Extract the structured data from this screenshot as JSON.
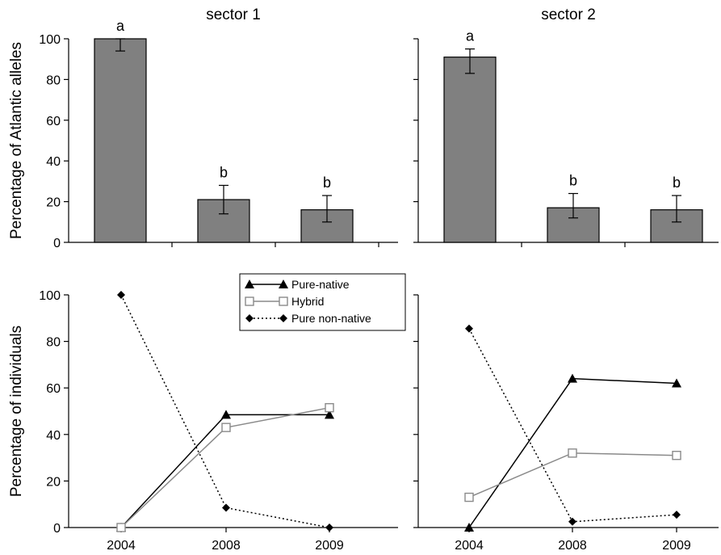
{
  "chart_data": [
    {
      "type": "bar",
      "panel": "top-left",
      "title": "sector 1",
      "ylabel": "Percentage of Atlantic alleles",
      "xlabel": "",
      "ylim": [
        0,
        100
      ],
      "yticks": [
        0,
        20,
        40,
        60,
        80,
        100
      ],
      "categories": [
        "2004",
        "2008",
        "2009"
      ],
      "values": [
        100,
        21,
        16
      ],
      "error": [
        [
          94,
          100
        ],
        [
          14,
          28
        ],
        [
          10,
          23
        ]
      ],
      "letters": [
        "a",
        "b",
        "b"
      ],
      "bar_color": "#808080",
      "show_x_tick_labels": false
    },
    {
      "type": "bar",
      "panel": "top-right",
      "title": "sector 2",
      "ylabel": "",
      "xlabel": "",
      "ylim": [
        0,
        100
      ],
      "yticks": [
        0,
        20,
        40,
        60,
        80,
        100
      ],
      "categories": [
        "2004",
        "2008",
        "2009"
      ],
      "values": [
        91,
        17,
        16
      ],
      "error": [
        [
          83,
          95
        ],
        [
          12,
          24
        ],
        [
          10,
          23
        ]
      ],
      "letters": [
        "a",
        "b",
        "b"
      ],
      "bar_color": "#808080",
      "show_x_tick_labels": false
    },
    {
      "type": "line",
      "panel": "bottom-left",
      "title": "",
      "ylabel": "Percentage of individuals",
      "xlabel": "",
      "ylim": [
        0,
        100
      ],
      "yticks": [
        0,
        20,
        40,
        60,
        80,
        100
      ],
      "categories": [
        "2004",
        "2008",
        "2009"
      ],
      "series": [
        {
          "name": "Pure-native",
          "values": [
            0,
            48.5,
            48.5
          ],
          "marker": "triangle",
          "color": "#000000",
          "dash": ""
        },
        {
          "name": "Hybrid",
          "values": [
            0,
            43,
            51.5
          ],
          "marker": "square-open",
          "color": "#8a8a8a",
          "dash": ""
        },
        {
          "name": "Pure non-native",
          "values": [
            100,
            8.5,
            0
          ],
          "marker": "diamond",
          "color": "#000000",
          "dash": "2,3"
        }
      ],
      "legend": "top-right"
    },
    {
      "type": "line",
      "panel": "bottom-right",
      "title": "",
      "ylabel": "",
      "xlabel": "",
      "ylim": [
        0,
        100
      ],
      "yticks": [
        0,
        20,
        40,
        60,
        80,
        100
      ],
      "categories": [
        "2004",
        "2008",
        "2009"
      ],
      "series": [
        {
          "name": "Pure-native",
          "values": [
            0,
            64,
            62
          ],
          "marker": "triangle",
          "color": "#000000",
          "dash": ""
        },
        {
          "name": "Hybrid",
          "values": [
            13,
            32,
            31
          ],
          "marker": "square-open",
          "color": "#8a8a8a",
          "dash": ""
        },
        {
          "name": "Pure non-native",
          "values": [
            85.5,
            2.5,
            5.5
          ],
          "marker": "diamond",
          "color": "#000000",
          "dash": "2,3"
        }
      ]
    }
  ]
}
